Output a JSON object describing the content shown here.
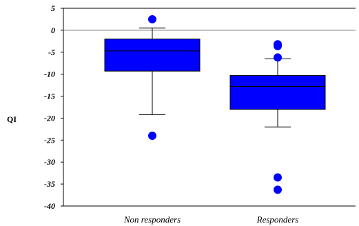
{
  "chart_data": {
    "type": "box",
    "ylabel": "QI",
    "ylim": [
      -40,
      5
    ],
    "yticks": [
      5,
      0,
      -5,
      -10,
      -15,
      -20,
      -25,
      -30,
      -35,
      -40
    ],
    "categories": [
      "Non responders",
      "Responders"
    ],
    "box_color": "#0000ff",
    "outlier_color": "#0000ff",
    "reference_line": 0,
    "boxes": [
      {
        "name": "Non responders",
        "whisker_high": 0.5,
        "q3": -2,
        "median": -4.7,
        "q1": -9.3,
        "whisker_low": -19.2,
        "outliers": [
          2.5,
          -24
        ]
      },
      {
        "name": "Responders",
        "whisker_high": -6.5,
        "q3": -10.3,
        "median": -12.8,
        "q1": -18,
        "whisker_low": -22,
        "outliers": [
          -3.2,
          -3.6,
          -6.2,
          -33.5,
          -36.3
        ]
      }
    ]
  }
}
